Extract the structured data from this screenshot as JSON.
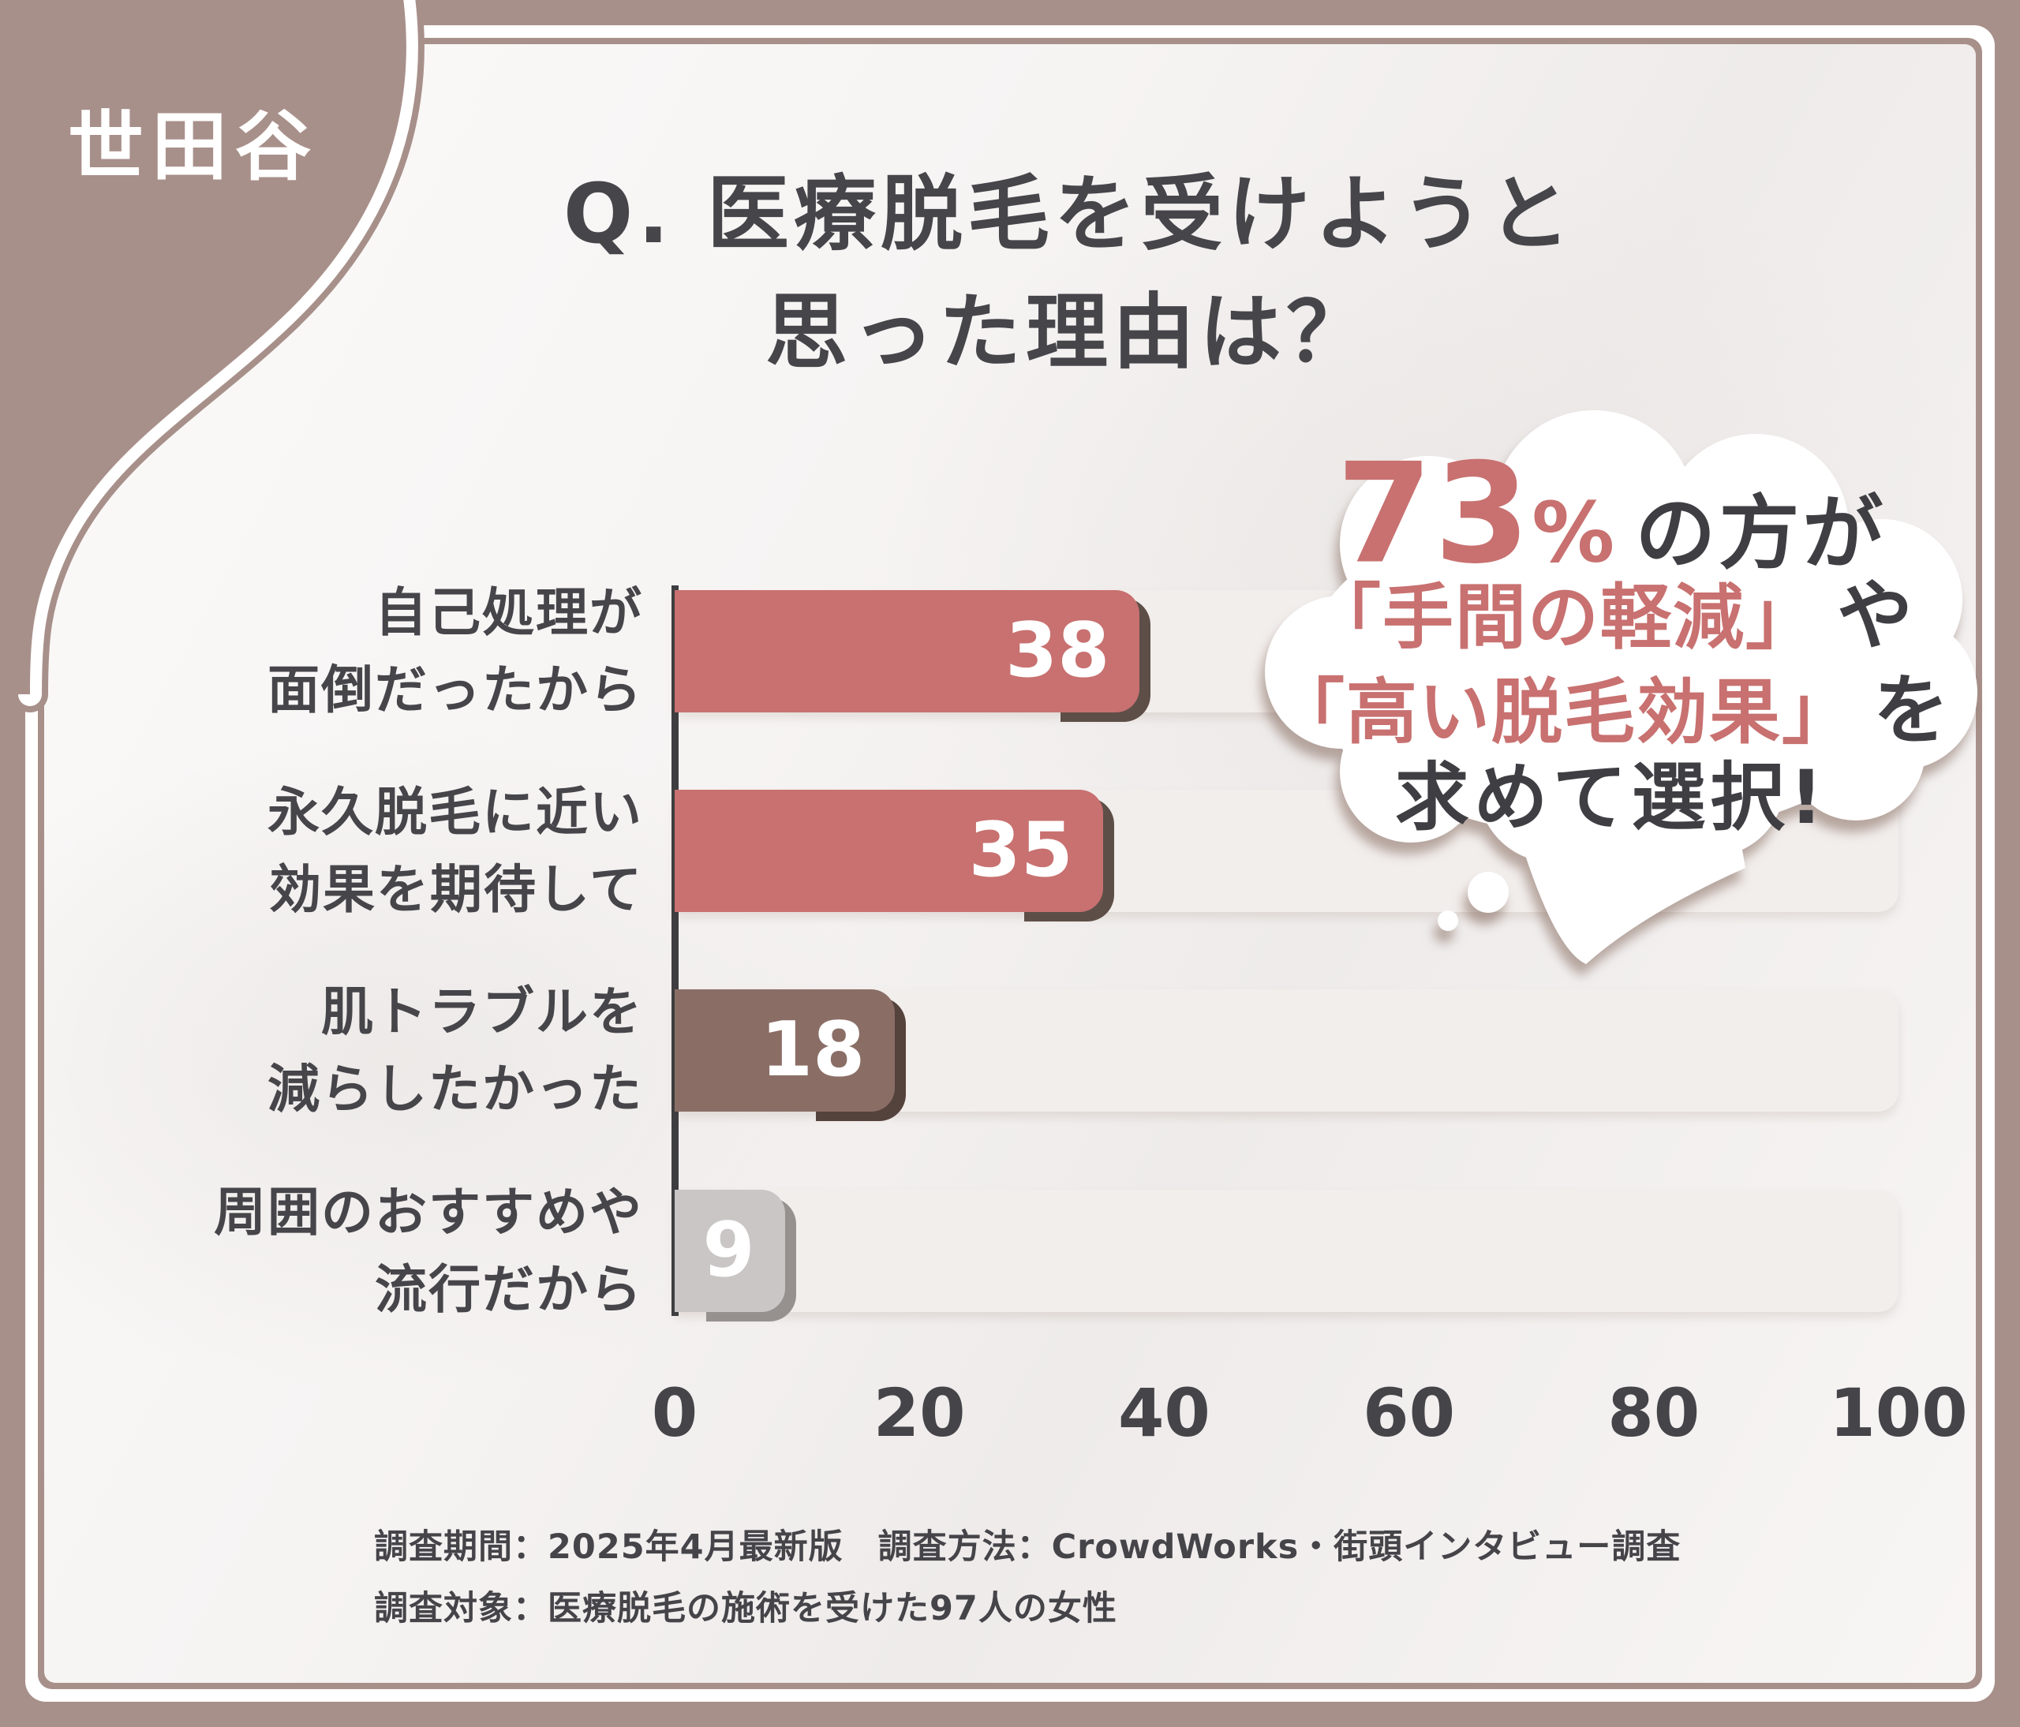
{
  "badge": {
    "label": "世田谷"
  },
  "title": {
    "line1": "Q. 医療脱毛を受けようと",
    "line2": "思った理由は？"
  },
  "callout": {
    "percent": "73",
    "percent_sign": "%",
    "after_percent": "の方が",
    "quote1": "「手間の軽減」",
    "between": "や",
    "quote2": "「高い脱毛効果」",
    "after_quote2": "を",
    "last_line": "求めて選択!"
  },
  "chart_data": {
    "type": "bar",
    "orientation": "horizontal",
    "title": "Q. 医療脱毛を受けようと思った理由は？",
    "categories": [
      [
        "自己処理が",
        "面倒だったから"
      ],
      [
        "永久脱毛に近い",
        "効果を期待して"
      ],
      [
        "肌トラブルを",
        "減らしたかった"
      ],
      [
        "周囲のおすすめや",
        "流行だから"
      ]
    ],
    "values": [
      38,
      35,
      18,
      9
    ],
    "value_labels": [
      "38",
      "35",
      "18",
      "9"
    ],
    "bar_colors": [
      "#c87170",
      "#c87170",
      "#8a6e66",
      "#c9c6c5"
    ],
    "bar_shadow_colors": [
      "#5e4e48",
      "#5e4e48",
      "#54423c",
      "#96918f"
    ],
    "track_color": "#f2eeec",
    "xticks": [
      "0",
      "20",
      "40",
      "60",
      "80",
      "100"
    ],
    "xlim": [
      0,
      100
    ],
    "grid": false,
    "legend": false
  },
  "footer": {
    "line1": "調査期間：2025年4月最新版　調査方法：CrowdWorks・街頭インタビュー調査",
    "line2": "調査対象：医療脱毛の施術を受けた97人の女性"
  },
  "colors": {
    "frame_brown": "#a8908a",
    "accent_salmon": "#c87170",
    "dark_text": "#46454a",
    "bubble_white": "#ffffff",
    "content_bg": "#f6f4f3"
  }
}
